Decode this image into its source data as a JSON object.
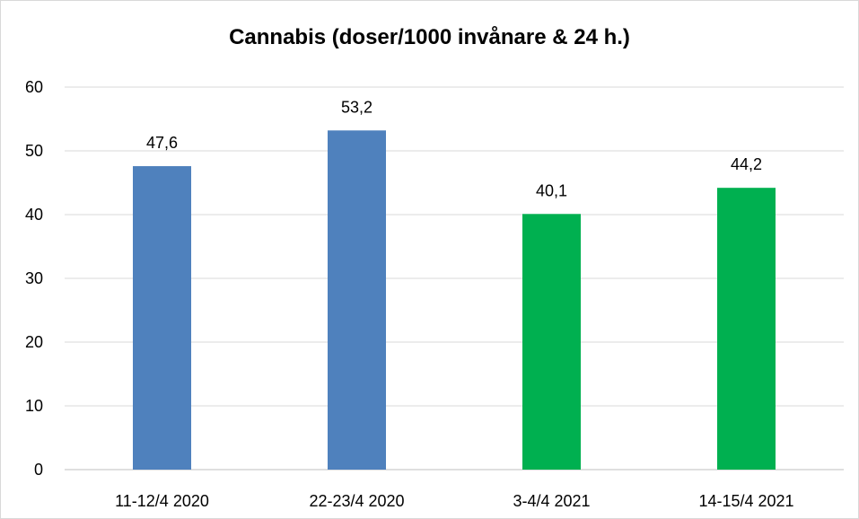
{
  "chart_data": {
    "type": "bar",
    "title": "Cannabis (doser/1000 invånare & 24 h.)",
    "xlabel": "",
    "ylabel": "",
    "categories": [
      "11-12/4 2020",
      "22-23/4 2020",
      "3-4/4 2021",
      "14-15/4 2021"
    ],
    "values": [
      47.6,
      53.2,
      40.1,
      44.2
    ],
    "data_labels": [
      "47,6",
      "53,2",
      "40,1",
      "44,2"
    ],
    "bar_colors": [
      "#4f81bd",
      "#4f81bd",
      "#00b050",
      "#00b050"
    ],
    "ylim": [
      0,
      60
    ],
    "yticks": [
      0,
      10,
      20,
      30,
      40,
      50,
      60
    ],
    "ytick_labels": [
      "0",
      "10",
      "20",
      "30",
      "40",
      "50",
      "60"
    ],
    "grid": true,
    "gridline_color": "#d9d9d9",
    "legend": "none"
  }
}
